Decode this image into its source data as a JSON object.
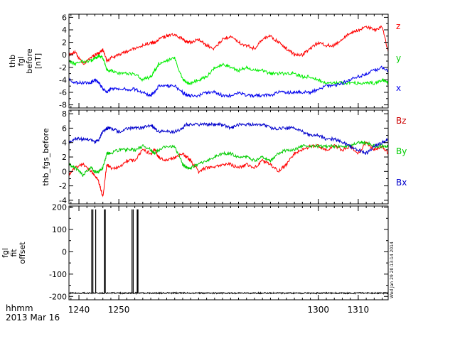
{
  "figure": {
    "footer_line1": "hhmm",
    "footer_line2": "2013 Mar 16",
    "side_stamp": "Wed Jan 29 20:13:14 2014"
  },
  "chart_data": [
    {
      "type": "line",
      "ylabel_lines": [
        "thb",
        "fgl",
        "before",
        "[nT]"
      ],
      "ylim": [
        -8.5,
        6.5
      ],
      "yticks": [
        6,
        4,
        2,
        0,
        -2,
        -4,
        -6,
        -8
      ],
      "xlim": [
        1237.5,
        1317.5
      ],
      "xtick_values": [
        1240,
        1250,
        1300,
        1310
      ],
      "series": [
        {
          "name": "z",
          "color": "#ff0000",
          "x": [
            1237.5,
            1239,
            1241,
            1243,
            1244,
            1245,
            1246,
            1247,
            1248,
            1250,
            1252,
            1254,
            1256,
            1258,
            1259,
            1260,
            1262,
            1264,
            1266,
            1267,
            1268,
            1270,
            1272,
            1274,
            1276,
            1278,
            1280,
            1282,
            1284,
            1286,
            1288,
            1290,
            1292,
            1294,
            1296,
            1298,
            1300,
            1302,
            1304,
            1306,
            1308,
            1310,
            1312,
            1314,
            1316,
            1317.5
          ],
          "y": [
            0.0,
            0.5,
            -1.5,
            -0.5,
            0.0,
            0.2,
            0.8,
            -1.0,
            -0.5,
            0.0,
            0.5,
            1.0,
            1.5,
            2.0,
            1.8,
            2.5,
            3.0,
            3.2,
            2.5,
            2.0,
            2.0,
            2.5,
            1.5,
            1.0,
            2.5,
            3.0,
            2.0,
            1.5,
            1.0,
            2.5,
            3.0,
            2.0,
            1.0,
            0.0,
            0.0,
            1.0,
            2.0,
            1.5,
            1.5,
            2.5,
            3.5,
            4.0,
            4.5,
            4.0,
            4.5,
            0.5
          ]
        },
        {
          "name": "y",
          "color": "#00ee00",
          "x": [
            1237.5,
            1239,
            1241,
            1243,
            1244,
            1245,
            1246,
            1247,
            1248,
            1250,
            1252,
            1254,
            1256,
            1258,
            1259,
            1260,
            1262,
            1264,
            1266,
            1267,
            1268,
            1270,
            1272,
            1274,
            1276,
            1278,
            1280,
            1282,
            1284,
            1286,
            1288,
            1290,
            1292,
            1294,
            1296,
            1298,
            1300,
            1302,
            1304,
            1306,
            1308,
            1310,
            1312,
            1314,
            1316,
            1317.5
          ],
          "y": [
            -1.0,
            -1.5,
            -1.0,
            -1.0,
            -0.5,
            -0.2,
            -0.5,
            -2.5,
            -2.5,
            -3.0,
            -3.0,
            -3.0,
            -4.0,
            -3.5,
            -2.5,
            -1.5,
            -1.0,
            -0.5,
            -4.0,
            -4.5,
            -4.5,
            -4.0,
            -3.5,
            -2.0,
            -1.5,
            -2.0,
            -2.5,
            -2.0,
            -2.5,
            -2.5,
            -3.0,
            -3.0,
            -3.0,
            -3.0,
            -3.5,
            -3.5,
            -4.0,
            -4.5,
            -4.5,
            -4.5,
            -4.5,
            -4.5,
            -4.5,
            -4.5,
            -4.0,
            -4.5
          ]
        },
        {
          "name": "x",
          "color": "#0000ee",
          "x": [
            1237.5,
            1239,
            1241,
            1243,
            1244,
            1245,
            1246,
            1247,
            1248,
            1250,
            1252,
            1254,
            1256,
            1258,
            1259,
            1260,
            1262,
            1264,
            1266,
            1267,
            1268,
            1270,
            1272,
            1274,
            1276,
            1278,
            1280,
            1282,
            1284,
            1286,
            1288,
            1290,
            1292,
            1294,
            1296,
            1298,
            1300,
            1302,
            1304,
            1306,
            1308,
            1310,
            1312,
            1314,
            1316,
            1317.5
          ],
          "y": [
            -4.0,
            -4.5,
            -4.5,
            -4.5,
            -4.0,
            -4.5,
            -5.5,
            -6.0,
            -5.5,
            -5.5,
            -5.5,
            -5.5,
            -6.0,
            -6.5,
            -6.0,
            -5.0,
            -5.0,
            -5.0,
            -6.0,
            -6.5,
            -6.5,
            -6.5,
            -6.0,
            -6.0,
            -6.5,
            -6.5,
            -6.0,
            -6.5,
            -6.5,
            -6.5,
            -6.5,
            -6.0,
            -6.0,
            -6.0,
            -6.0,
            -6.0,
            -5.5,
            -5.0,
            -5.0,
            -4.5,
            -4.0,
            -3.5,
            -3.0,
            -2.5,
            -2.0,
            -2.5
          ]
        }
      ]
    },
    {
      "type": "line",
      "ylabel_lines": [
        "thb_fgs_before"
      ],
      "ylim": [
        -4.5,
        8.5
      ],
      "yticks": [
        8,
        6,
        4,
        2,
        0,
        -2,
        -4
      ],
      "xlim": [
        1237.5,
        1317.5
      ],
      "xtick_values": [
        1240,
        1250,
        1300,
        1310
      ],
      "series": [
        {
          "name": "Bz",
          "color": "#ff0000",
          "x": [
            1237.5,
            1239,
            1241,
            1243,
            1244,
            1245,
            1246,
            1247,
            1248,
            1250,
            1252,
            1254,
            1256,
            1258,
            1259,
            1260,
            1262,
            1264,
            1266,
            1267,
            1268,
            1270,
            1272,
            1274,
            1276,
            1278,
            1280,
            1282,
            1284,
            1286,
            1288,
            1290,
            1292,
            1294,
            1296,
            1298,
            1300,
            1302,
            1304,
            1306,
            1308,
            1310,
            1312,
            1314,
            1316,
            1317.5
          ],
          "y": [
            -0.5,
            0.5,
            1.0,
            0.0,
            -0.5,
            -1.5,
            -3.5,
            1.0,
            0.5,
            0.5,
            1.5,
            1.5,
            3.0,
            2.5,
            3.0,
            2.0,
            1.5,
            2.0,
            2.5,
            2.0,
            1.5,
            0.0,
            0.5,
            0.5,
            1.0,
            1.0,
            0.5,
            1.0,
            0.5,
            1.5,
            1.0,
            0.0,
            1.0,
            2.5,
            3.0,
            3.5,
            3.5,
            3.0,
            3.5,
            3.0,
            3.5,
            2.5,
            4.0,
            3.0,
            3.5,
            2.5
          ]
        },
        {
          "name": "By",
          "color": "#00cc00",
          "x": [
            1237.5,
            1239,
            1241,
            1243,
            1244,
            1245,
            1246,
            1247,
            1248,
            1250,
            1252,
            1254,
            1256,
            1258,
            1259,
            1260,
            1262,
            1264,
            1266,
            1267,
            1268,
            1270,
            1272,
            1274,
            1276,
            1278,
            1280,
            1282,
            1284,
            1286,
            1288,
            1290,
            1292,
            1294,
            1296,
            1298,
            1300,
            1302,
            1304,
            1306,
            1308,
            1310,
            1312,
            1314,
            1316,
            1317.5
          ],
          "y": [
            1.0,
            0.5,
            -0.5,
            0.5,
            0.0,
            0.0,
            0.5,
            2.5,
            2.5,
            3.0,
            3.0,
            3.0,
            3.5,
            3.0,
            2.5,
            3.0,
            3.5,
            3.5,
            1.0,
            0.5,
            0.5,
            1.0,
            1.5,
            2.0,
            2.5,
            2.5,
            2.0,
            2.0,
            1.5,
            2.0,
            1.5,
            2.5,
            3.0,
            3.0,
            3.5,
            3.5,
            3.5,
            3.5,
            3.5,
            3.5,
            3.5,
            4.0,
            4.0,
            3.5,
            3.5,
            3.5
          ]
        },
        {
          "name": "Bx",
          "color": "#0000cc",
          "x": [
            1237.5,
            1239,
            1241,
            1243,
            1244,
            1245,
            1246,
            1247,
            1248,
            1250,
            1252,
            1254,
            1256,
            1258,
            1259,
            1260,
            1262,
            1264,
            1266,
            1267,
            1268,
            1270,
            1272,
            1274,
            1276,
            1278,
            1280,
            1282,
            1284,
            1286,
            1288,
            1290,
            1292,
            1294,
            1296,
            1298,
            1300,
            1302,
            1304,
            1306,
            1308,
            1310,
            1312,
            1314,
            1316,
            1317.5
          ],
          "y": [
            4.0,
            4.5,
            4.5,
            4.5,
            4.0,
            4.5,
            5.5,
            6.0,
            6.0,
            5.5,
            6.0,
            6.0,
            6.0,
            6.5,
            6.0,
            5.5,
            5.5,
            5.5,
            6.0,
            6.5,
            6.5,
            6.5,
            6.5,
            6.5,
            6.5,
            6.0,
            6.5,
            6.5,
            6.5,
            6.5,
            6.0,
            6.0,
            6.0,
            6.0,
            5.5,
            5.0,
            5.0,
            4.5,
            4.5,
            4.0,
            3.5,
            3.0,
            2.5,
            3.5,
            4.0,
            4.5
          ]
        }
      ]
    },
    {
      "type": "line",
      "ylabel_lines": [
        "fgl",
        "fit",
        "offset"
      ],
      "ylim": [
        -215,
        205
      ],
      "yticks": [
        200,
        100,
        0,
        -100,
        -200
      ],
      "xlim": [
        1237.5,
        1317.5
      ],
      "xtick_values": [
        1240,
        1250,
        1300,
        1310
      ],
      "xtick_labels": [
        "1240",
        "1250",
        "1300",
        "1310"
      ],
      "series": [
        {
          "name": "",
          "color": "#000000",
          "x": [
            1237.5,
            1317.5
          ],
          "y": [
            -185,
            -185
          ],
          "spikes": [
            1243.2,
            1243.5,
            1244.2,
            1246.4,
            1246.6,
            1253.3,
            1253.6,
            1254.6,
            1254.8
          ],
          "spike_top": 190
        }
      ]
    }
  ],
  "legends": [
    [
      {
        "label": "z",
        "color": "#ff0000"
      },
      {
        "label": "y",
        "color": "#00cc00"
      },
      {
        "label": "x",
        "color": "#0000ee"
      }
    ],
    [
      {
        "label": "Bz",
        "color": "#cc0000"
      },
      {
        "label": "By",
        "color": "#00cc00"
      },
      {
        "label": "Bx",
        "color": "#0000cc"
      }
    ]
  ]
}
